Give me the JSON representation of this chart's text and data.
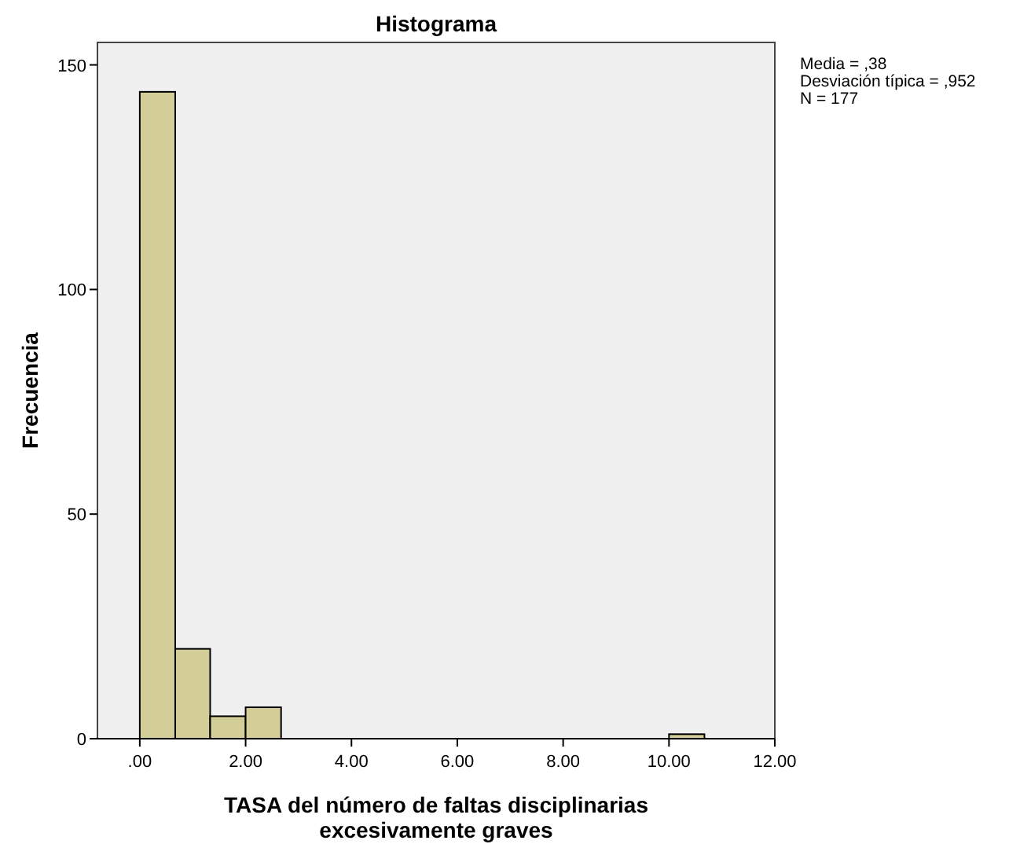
{
  "chart_data": {
    "type": "histogram",
    "title": "Histograma",
    "xlabel": "TASA del número de faltas disciplinarias\nexcesivamente graves",
    "ylabel": "Frecuencia",
    "bins": [
      0,
      0.67,
      1.33,
      2,
      2.67,
      10,
      10.67
    ],
    "values": [
      144,
      20,
      5,
      7,
      0,
      1
    ],
    "color": "#d3ce97",
    "xlim": [
      -0.8,
      12
    ],
    "ylim": [
      0,
      155
    ],
    "xticks": [
      {
        "value": 0,
        "label": ".00"
      },
      {
        "value": 2,
        "label": "2.00"
      },
      {
        "value": 4,
        "label": "4.00"
      },
      {
        "value": 6,
        "label": "6.00"
      },
      {
        "value": 8,
        "label": "8.00"
      },
      {
        "value": 10,
        "label": "10.00"
      },
      {
        "value": 12,
        "label": "12.00"
      }
    ],
    "yticks": [
      0,
      50,
      100,
      150
    ],
    "annotations": [
      "Media = ,38",
      "Desviación típica = ,952",
      "N = 177"
    ]
  }
}
